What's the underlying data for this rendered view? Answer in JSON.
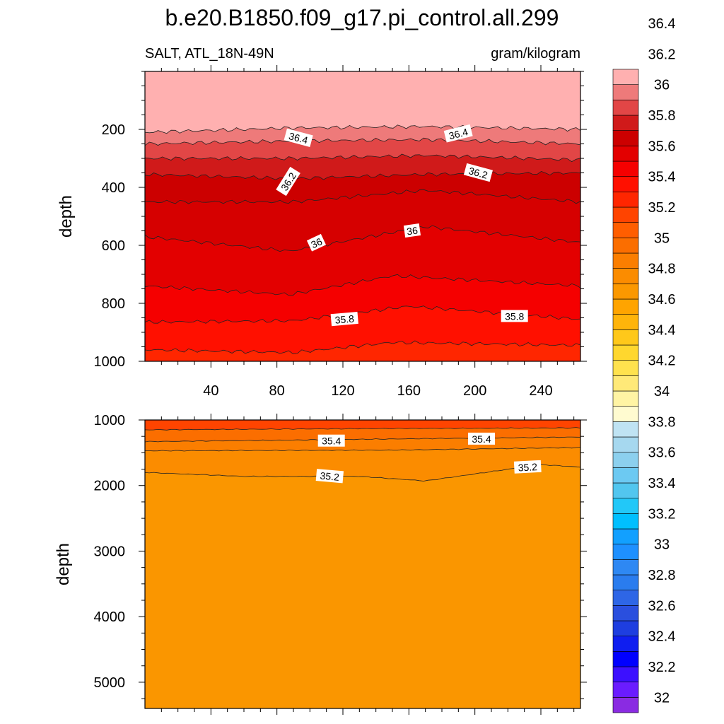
{
  "title": "b.e20.B1850.f09_g17.pi_control.all.299",
  "colorbar": {
    "colors": [
      "#8a2be2",
      "#6a1cff",
      "#3c10ff",
      "#0000ff",
      "#0f1ef0",
      "#1e3ee0",
      "#2a4fde",
      "#2e66e6",
      "#2a7cee",
      "#2e88f3",
      "#1e90ff",
      "#12a0ff",
      "#00bfff",
      "#22c8f8",
      "#52c6ef",
      "#6cc9f2",
      "#8cd0ee",
      "#a6d8ef",
      "#bfe3f3",
      "#fffbd0",
      "#fff4a4",
      "#ffe978",
      "#ffe24e",
      "#ffd72e",
      "#ffc81a",
      "#ffb40a",
      "#ffa400",
      "#fb9800",
      "#fb8c00",
      "#fb7e00",
      "#fb6e00",
      "#ff5e00",
      "#ff4400",
      "#ff2600",
      "#ff1000",
      "#f50000",
      "#e30000",
      "#cc0000",
      "#d01a1a",
      "#e24646",
      "#ee7a7a",
      "#ffb0b0"
    ],
    "labels": [
      "32",
      "32.2",
      "32.4",
      "32.6",
      "32.8",
      "33",
      "33.2",
      "33.4",
      "33.6",
      "33.8",
      "34",
      "34.2",
      "34.4",
      "34.6",
      "34.8",
      "35",
      "35.2",
      "35.4",
      "35.6",
      "35.8",
      "36",
      "36.2",
      "36.4"
    ]
  },
  "chart_data": [
    {
      "type": "contour",
      "panel": "upper",
      "variable_label": "SALT, ATL_18N-49N",
      "units_label": "gram/kilogram",
      "ylabel": "depth",
      "xlabel": "",
      "xlim": [
        0,
        264
      ],
      "ylim": [
        1000,
        0
      ],
      "xticks": [
        "40",
        "80",
        "120",
        "160",
        "200",
        "240"
      ],
      "xtick_values": [
        40,
        80,
        120,
        160,
        200,
        240
      ],
      "yticks": [
        "200",
        "400",
        "600",
        "800",
        "1000"
      ],
      "ytick_values": [
        200,
        400,
        600,
        800,
        1000
      ],
      "fill_colors": [
        "#ffb0b0",
        "#ee7a7a",
        "#e24646",
        "#d01a1a",
        "#cc0000",
        "#d60000",
        "#e30000",
        "#f50000",
        "#ff1000",
        "#ff2600"
      ],
      "boundaries": [
        {
          "value": 36.5,
          "depth_at_x": [
            [
              0,
              210
            ],
            [
              90,
              195
            ],
            [
              170,
              190
            ],
            [
              264,
              200
            ]
          ]
        },
        {
          "value": 36.4,
          "depth_at_x": [
            [
              0,
              250
            ],
            [
              90,
              240
            ],
            [
              170,
              235
            ],
            [
              264,
              250
            ]
          ]
        },
        {
          "value": 36.3,
          "depth_at_x": [
            [
              0,
              300
            ],
            [
              90,
              300
            ],
            [
              170,
              290
            ],
            [
              264,
              305
            ]
          ]
        },
        {
          "value": 36.2,
          "depth_at_x": [
            [
              0,
              355
            ],
            [
              90,
              370
            ],
            [
              170,
              355
            ],
            [
              264,
              350
            ]
          ]
        },
        {
          "value": 36.1,
          "depth_at_x": [
            [
              0,
              450
            ],
            [
              90,
              450
            ],
            [
              170,
              410
            ],
            [
              264,
              450
            ]
          ]
        },
        {
          "value": 36.0,
          "depth_at_x": [
            [
              0,
              570
            ],
            [
              88,
              620
            ],
            [
              170,
              535
            ],
            [
              264,
              590
            ]
          ]
        },
        {
          "value": 35.9,
          "depth_at_x": [
            [
              0,
              740
            ],
            [
              88,
              770
            ],
            [
              150,
              705
            ],
            [
              264,
              740
            ]
          ]
        },
        {
          "value": 35.8,
          "depth_at_x": [
            [
              0,
              865
            ],
            [
              90,
              860
            ],
            [
              160,
              810
            ],
            [
              264,
              855
            ]
          ]
        },
        {
          "value": 35.7,
          "depth_at_x": [
            [
              0,
              960
            ],
            [
              90,
              970
            ],
            [
              150,
              935
            ],
            [
              264,
              945
            ]
          ]
        }
      ],
      "contour_labels": [
        {
          "text": "36.4",
          "x": 93,
          "depth": 230,
          "angle": 15
        },
        {
          "text": "36.4",
          "x": 190,
          "depth": 215,
          "angle": -14
        },
        {
          "text": "36.2",
          "x": 87,
          "depth": 380,
          "angle": -58
        },
        {
          "text": "36.2",
          "x": 202,
          "depth": 350,
          "angle": 15
        },
        {
          "text": "36",
          "x": 104,
          "depth": 592,
          "angle": -25
        },
        {
          "text": "36",
          "x": 162,
          "depth": 550,
          "angle": -8
        },
        {
          "text": "35.8",
          "x": 121,
          "depth": 855,
          "angle": -5
        },
        {
          "text": "35.8",
          "x": 224,
          "depth": 845,
          "angle": 0
        }
      ]
    },
    {
      "type": "contour",
      "panel": "lower",
      "ylabel": "depth",
      "xlim": [
        0,
        264
      ],
      "ylim": [
        5400,
        1000
      ],
      "yticks": [
        "1000",
        "2000",
        "3000",
        "4000",
        "5000"
      ],
      "ytick_values": [
        1000,
        2000,
        3000,
        4000,
        5000
      ],
      "fill_colors": [
        "#ff4400",
        "#fb6e00",
        "#fb7e00",
        "#fb8c00",
        "#fa9600"
      ],
      "boundaries": [
        {
          "value": 35.5,
          "depth_at_x": [
            [
              0,
              1150
            ],
            [
              150,
              1130
            ],
            [
              264,
              1120
            ]
          ]
        },
        {
          "value": 35.4,
          "depth_at_x": [
            [
              0,
              1330
            ],
            [
              150,
              1290
            ],
            [
              264,
              1260
            ]
          ]
        },
        {
          "value": 35.3,
          "depth_at_x": [
            [
              0,
              1470
            ],
            [
              150,
              1460
            ],
            [
              264,
              1420
            ]
          ]
        },
        {
          "value": 35.2,
          "depth_at_x": [
            [
              0,
              1800
            ],
            [
              60,
              1860
            ],
            [
              130,
              1860
            ],
            [
              170,
              1930
            ],
            [
              240,
              1680
            ],
            [
              264,
              1720
            ]
          ]
        }
      ],
      "contour_labels": [
        {
          "text": "35.4",
          "x": 113,
          "depth": 1320,
          "angle": 0
        },
        {
          "text": "35.4",
          "x": 204,
          "depth": 1290,
          "angle": 0
        },
        {
          "text": "35.2",
          "x": 112,
          "depth": 1860,
          "angle": 5
        },
        {
          "text": "35.2",
          "x": 232,
          "depth": 1720,
          "angle": -3
        }
      ]
    }
  ]
}
